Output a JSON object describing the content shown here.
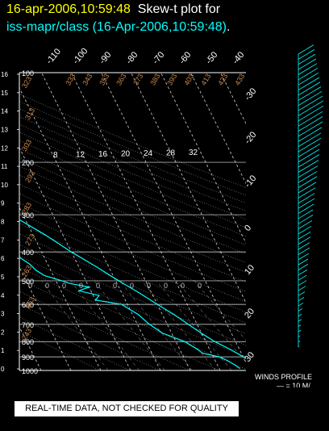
{
  "title": {
    "date_time": "16-apr-2006,10:59:48",
    "label": "Skew-t plot for",
    "line2": "iss-mapr/class (16-Apr-2006,10:59:48)",
    "line2_end": "."
  },
  "notice": "REAL-TIME DATA, NOT CHECKED FOR QUALITY",
  "colors": {
    "background": "#000000",
    "title_yellow": "#ffff00",
    "sounding": "#00ffff",
    "grid": "#ffffff",
    "labels": "#c8874b",
    "notice_bg": "#ffffff"
  },
  "chart_data": {
    "type": "line",
    "title": "Skew-t plot for",
    "pressure_axis": {
      "labels": [
        "100",
        "200",
        "300",
        "400",
        "500",
        "600",
        "700",
        "800",
        "900",
        "1000"
      ],
      "values": [
        100,
        200,
        300,
        400,
        500,
        600,
        700,
        800,
        900,
        1000
      ],
      "range": [
        100,
        1000
      ],
      "scale": "log"
    },
    "height_axis": {
      "labels": [
        "16",
        "15",
        "14",
        "13",
        "12",
        "11",
        "10",
        "9",
        "8",
        "7",
        "6",
        "5",
        "4",
        "3",
        "2",
        "1",
        "0"
      ],
      "values_km": [
        16,
        15,
        14,
        13,
        12,
        11,
        10,
        9,
        8,
        7,
        6,
        5,
        4,
        3,
        2,
        1,
        0
      ]
    },
    "isotherms": {
      "top_labels": [
        "-110",
        "-100",
        "-90",
        "-80",
        "-70",
        "-60",
        "-50",
        "-40"
      ],
      "right_labels": [
        "-30",
        "-20",
        "-10",
        "0",
        "10",
        "20",
        "30"
      ],
      "values_c": [
        -110,
        -100,
        -90,
        -80,
        -70,
        -60,
        -50,
        -40,
        -30,
        -20,
        -10,
        0,
        10,
        20,
        30
      ]
    },
    "dry_adiabats": {
      "labels": [
        "433",
        "423",
        "413",
        "403",
        "393",
        "383",
        "373",
        "363",
        "353",
        "343",
        "333",
        "323",
        "313",
        "303",
        "293",
        "283",
        "273",
        "263",
        "253",
        "243"
      ]
    },
    "mixing_ratio": {
      "labels": [
        "8",
        "12",
        "16",
        "20",
        "24",
        "28",
        "32"
      ],
      "lower_labels": [
        "0",
        "0",
        "0",
        "0",
        "0",
        "0",
        "0",
        "0",
        "0",
        "0",
        "0"
      ]
    },
    "series": [
      {
        "name": "temperature",
        "points": [
          {
            "p": 1000,
            "t": 23
          },
          {
            "p": 985,
            "t": 25
          },
          {
            "p": 960,
            "t": 24
          },
          {
            "p": 925,
            "t": 22
          },
          {
            "p": 900,
            "t": 20
          },
          {
            "p": 850,
            "t": 17
          },
          {
            "p": 800,
            "t": 13
          },
          {
            "p": 750,
            "t": 10
          },
          {
            "p": 700,
            "t": 7
          },
          {
            "p": 650,
            "t": 4
          },
          {
            "p": 600,
            "t": 0
          },
          {
            "p": 550,
            "t": -4
          },
          {
            "p": 500,
            "t": -9
          },
          {
            "p": 450,
            "t": -14
          },
          {
            "p": 400,
            "t": -20
          },
          {
            "p": 350,
            "t": -26
          },
          {
            "p": 300,
            "t": -34
          },
          {
            "p": 250,
            "t": -43
          },
          {
            "p": 225,
            "t": -49
          },
          {
            "p": 210,
            "t": -54
          },
          {
            "p": 200,
            "t": -56
          },
          {
            "p": 190,
            "t": -57
          },
          {
            "p": 175,
            "t": -60
          },
          {
            "p": 160,
            "t": -63
          },
          {
            "p": 150,
            "t": -65
          },
          {
            "p": 140,
            "t": -67
          },
          {
            "p": 130,
            "t": -70
          },
          {
            "p": 120,
            "t": -72
          },
          {
            "p": 110,
            "t": -74
          },
          {
            "p": 100,
            "t": -75
          }
        ]
      },
      {
        "name": "dewpoint",
        "points": [
          {
            "p": 985,
            "t": 17
          },
          {
            "p": 960,
            "t": 16
          },
          {
            "p": 925,
            "t": 14
          },
          {
            "p": 900,
            "t": 12
          },
          {
            "p": 875,
            "t": 7
          },
          {
            "p": 850,
            "t": 6
          },
          {
            "p": 800,
            "t": 3
          },
          {
            "p": 750,
            "t": -3
          },
          {
            "p": 700,
            "t": -6
          },
          {
            "p": 650,
            "t": -8
          },
          {
            "p": 600,
            "t": -12
          },
          {
            "p": 580,
            "t": -20
          },
          {
            "p": 560,
            "t": -18
          },
          {
            "p": 540,
            "t": -24
          },
          {
            "p": 525,
            "t": -20
          },
          {
            "p": 510,
            "t": -26
          },
          {
            "p": 500,
            "t": -28
          },
          {
            "p": 480,
            "t": -33
          },
          {
            "p": 460,
            "t": -35
          },
          {
            "p": 440,
            "t": -36
          },
          {
            "p": 420,
            "t": -38
          },
          {
            "p": 400,
            "t": -39
          },
          {
            "p": 370,
            "t": -42
          },
          {
            "p": 340,
            "t": -46
          },
          {
            "p": 300,
            "t": -52
          },
          {
            "p": 270,
            "t": -58
          },
          {
            "p": 250,
            "t": -62
          },
          {
            "p": 230,
            "t": -66
          },
          {
            "p": 210,
            "t": -72
          },
          {
            "p": 200,
            "t": -74
          },
          {
            "p": 185,
            "t": -78
          },
          {
            "p": 170,
            "t": -83
          },
          {
            "p": 160,
            "t": -86
          },
          {
            "p": 150,
            "t": -88
          },
          {
            "p": 140,
            "t": -90
          },
          {
            "p": 130,
            "t": -91
          },
          {
            "p": 120,
            "t": -90
          },
          {
            "p": 112,
            "t": -87
          },
          {
            "p": 105,
            "t": -83
          },
          {
            "p": 100,
            "t": -80
          }
        ]
      }
    ],
    "winds_profile": {
      "label": "WINDS PROFILE",
      "scale_label": "— = 10 M/",
      "speeds_ms": [
        1,
        2,
        2,
        3,
        3,
        4,
        4,
        5,
        6,
        7,
        8,
        9,
        10,
        10,
        11,
        12,
        12,
        13,
        14,
        14,
        15,
        15,
        16,
        17,
        18,
        18,
        19,
        20,
        20,
        21,
        22,
        23,
        23,
        24,
        25,
        26,
        26,
        27,
        28,
        28,
        29,
        30,
        30,
        30,
        31,
        31,
        30,
        29,
        28,
        27,
        26,
        25,
        24,
        23,
        22,
        21,
        20,
        19
      ]
    }
  }
}
